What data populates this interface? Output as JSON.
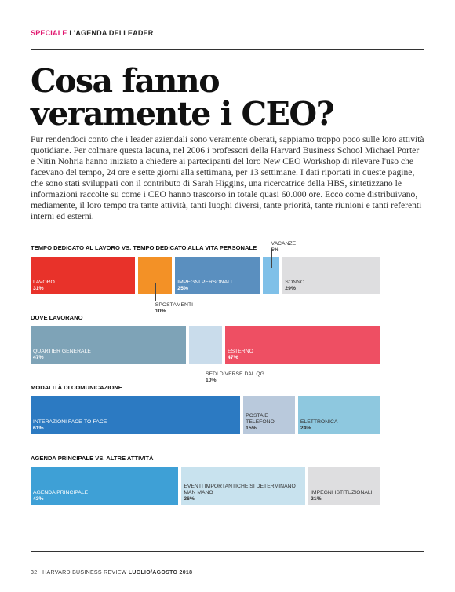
{
  "header": {
    "section": "SPECIALE",
    "subtitle": "L'AGENDA DEI LEADER"
  },
  "title_line1": "Cosa fanno",
  "title_line2": "veramente i CEO?",
  "intro": "Pur rendendoci conto che i leader aziendali sono veramente oberati, sappiamo troppo poco sulle loro attività quotidiane. Per colmare questa lacuna, nel 2006 i professori della Harvard Business School Michael Porter e Nitin Nohria hanno iniziato a chiedere ai partecipanti del loro New CEO Workshop di rilevare l'uso che facevano del tempo, 24 ore e sette giorni alla settimana, per 13 settimane. I dati riportati in queste pagine, che sono stati sviluppati con il contributo di Sarah Higgins, una ricercatrice della HBS, sintetizzano le informazioni raccolte su come i CEO hanno trascorso in totale quasi 60.000 ore. Ecco come distribuivano, mediamente, il loro tempo tra tante attività, tanti luoghi diversi, tante priorità, tante riunioni e tanti referenti interni ed esterni.",
  "chart_data": [
    {
      "type": "bar",
      "title": "TEMPO DEDICATO AL LAVORO VS. TEMPO DEDICATO ALLA VITA PERSONALE",
      "segments": [
        {
          "label": "LAVORO",
          "value": 31,
          "pct": "31%",
          "color": "#e8322a"
        },
        {
          "label": "SPOSTAMENTI",
          "value": 10,
          "pct": "10%",
          "color": "#f39126",
          "callout": "below"
        },
        {
          "label": "IMPEGNI PERSONALI",
          "value": 25,
          "pct": "25%",
          "color": "#5a8fbf"
        },
        {
          "label": "VACANZE",
          "value": 5,
          "pct": "5%",
          "color": "#7fc0e8",
          "callout": "above"
        },
        {
          "label": "SONNO",
          "value": 29,
          "pct": "29%",
          "color": "#dedee0",
          "dark": true
        }
      ]
    },
    {
      "type": "bar",
      "title": "DOVE LAVORANO",
      "segments": [
        {
          "label": "QUARTIER GENERALE",
          "value": 47,
          "pct": "47%",
          "color": "#7ea3b7"
        },
        {
          "label": "SEDI DIVERSE DAL QG",
          "value": 10,
          "pct": "10%",
          "color": "#c9dceb",
          "callout": "below"
        },
        {
          "label": "ESTERNO",
          "value": 47,
          "pct": "47%",
          "color": "#ee4f63"
        }
      ]
    },
    {
      "type": "bar",
      "title": "MODALITÀ DI COMUNICAZIONE",
      "segments": [
        {
          "label": "INTERAZIONI FACE-TO-FACE",
          "value": 61,
          "pct": "61%",
          "color": "#2c7ac2"
        },
        {
          "label": "POSTA E TELEFONO",
          "value": 15,
          "pct": "15%",
          "color": "#b9c9dc",
          "dark": true
        },
        {
          "label": "ELETTRONICA",
          "value": 24,
          "pct": "24%",
          "color": "#8ec8df",
          "dark": true
        }
      ]
    },
    {
      "type": "bar",
      "title": "AGENDA PRINCIPALE VS. ALTRE ATTIVITÀ",
      "segments": [
        {
          "label": "AGENDA PRINCIPALE",
          "value": 43,
          "pct": "43%",
          "color": "#3ea0d6"
        },
        {
          "label": "EVENTI IMPORTANTICHE SI DETERMINANO MAN MANO",
          "value": 36,
          "pct": "36%",
          "color": "#c8e2ee",
          "dark": true
        },
        {
          "label": "IMPEGNI ISTITUZIONALI",
          "value": 21,
          "pct": "21%",
          "color": "#dedee0",
          "dark": true
        }
      ]
    }
  ],
  "footer": {
    "page": "32",
    "publication": "HARVARD BUSINESS REVIEW",
    "issue": "LUGLIO/AGOSTO 2018"
  }
}
